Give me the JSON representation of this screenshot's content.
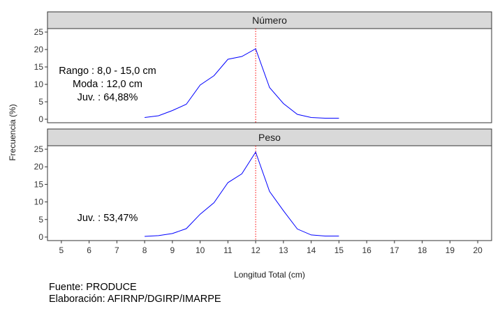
{
  "chart_data": {
    "type": "line",
    "xlabel": "Longitud Total (cm)",
    "ylabel": "Frecuencia (%)",
    "xlim": [
      4.5,
      20.5
    ],
    "xticks": [
      5,
      6,
      7,
      8,
      9,
      10,
      11,
      12,
      13,
      14,
      15,
      16,
      17,
      18,
      19,
      20
    ],
    "ylim": [
      -1,
      26
    ],
    "yticks": [
      0,
      5,
      10,
      15,
      20,
      25
    ],
    "grid": false,
    "line_color": "#0000ff",
    "reference_line": {
      "x": 12,
      "color": "#ff0000",
      "style": "dotted"
    },
    "panels": [
      {
        "strip": "Número",
        "annotations": [
          "Rango : 8,0 - 15,0 cm",
          "Moda : 12,0 cm",
          "Juv. : 64,88%"
        ],
        "series": [
          {
            "x": [
              8,
              8.5,
              9,
              9.5,
              10,
              10.5,
              11,
              11.5,
              12,
              12.5,
              13,
              13.5,
              14,
              14.5,
              15
            ],
            "values": [
              0.5,
              1.0,
              2.5,
              4.3,
              9.8,
              12.5,
              17.2,
              18.0,
              20.2,
              9.1,
              4.5,
              1.4,
              0.5,
              0.3,
              0.3
            ]
          }
        ]
      },
      {
        "strip": "Peso",
        "annotations": [
          "Juv. : 53,47%"
        ],
        "series": [
          {
            "x": [
              8,
              8.5,
              9,
              9.5,
              10,
              10.5,
              11,
              11.5,
              12,
              12.5,
              13,
              13.5,
              14,
              14.5,
              15
            ],
            "values": [
              0.2,
              0.4,
              1.0,
              2.4,
              6.5,
              9.8,
              15.5,
              18.0,
              24.2,
              13.0,
              7.5,
              2.3,
              0.6,
              0.3,
              0.3
            ]
          }
        ]
      }
    ]
  },
  "footer": {
    "source": "Fuente: PRODUCE",
    "elaboration": "Elaboración: AFIRNP/DGIRP/IMARPE"
  }
}
